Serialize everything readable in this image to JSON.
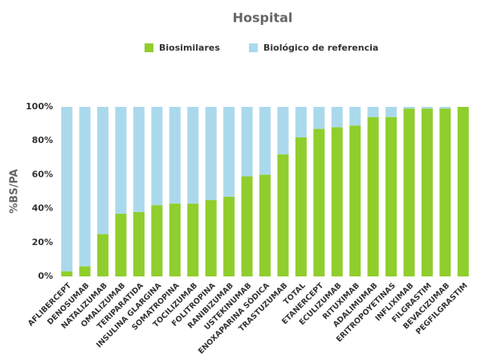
{
  "chart_data": {
    "type": "stacked_bar",
    "title": "Hospital",
    "y_label": "%BS/PA",
    "categories": [
      "AFLIBERCEPT",
      "DENOSUMAB",
      "NATALIZUMAB",
      "OMALIZUMAB",
      "TERIPARATIDA",
      "INSULINA GLARGINA",
      "SOMATROPINA",
      "TOCILIZUMAB",
      "FOLITROPINA",
      "RANIBIZUMAB",
      "USTEKINUMAB",
      "ENOXAPARINA SÓDICA",
      "TRASTUZUMAB",
      "TOTAL",
      "ETANERCEPT",
      "ECULIZUMAB",
      "RITUXIMAB",
      "ADALIMUMAB",
      "ERITROPOYETINAS",
      "INFLIXIMAB",
      "FILGRASTIM",
      "BEVACIZUMAB",
      "PEGFILGRASTIM"
    ],
    "series": [
      {
        "name": "Biosimilares",
        "color": "#8fce2c",
        "values": [
          3,
          6,
          25,
          37,
          38,
          42,
          43,
          43,
          45,
          47,
          59,
          60,
          72,
          82,
          87,
          88,
          89,
          94,
          94,
          99,
          99,
          99,
          100
        ]
      },
      {
        "name": "Biológico de referencia",
        "color": "#abd9ec",
        "values": [
          97,
          94,
          75,
          63,
          62,
          58,
          57,
          57,
          55,
          53,
          41,
          40,
          28,
          18,
          13,
          12,
          11,
          6,
          6,
          1,
          1,
          1,
          0
        ]
      }
    ],
    "ylim": [
      0,
      100
    ],
    "yticks": [
      {
        "value": 0,
        "label": "0%"
      },
      {
        "value": 20,
        "label": "20%"
      },
      {
        "value": 40,
        "label": "40%"
      },
      {
        "value": 60,
        "label": "60%"
      },
      {
        "value": 80,
        "label": "80%"
      },
      {
        "value": 100,
        "label": "100%"
      }
    ],
    "legend": "top"
  }
}
